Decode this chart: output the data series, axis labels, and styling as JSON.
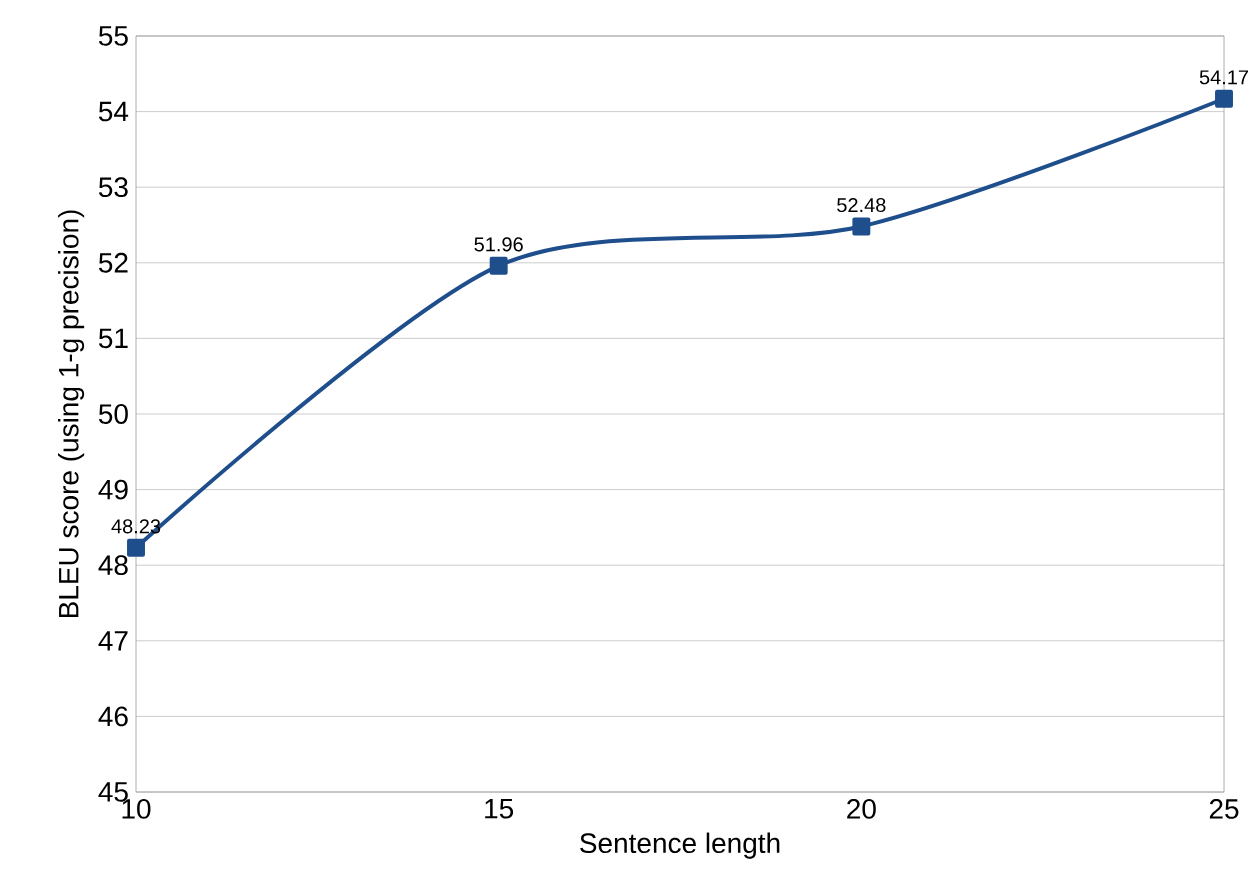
{
  "chart_data": {
    "type": "line",
    "xlabel": "Sentence length",
    "ylabel": "BLEU score (using 1-g precision)",
    "x": [
      10,
      15,
      20,
      25
    ],
    "series": [
      {
        "color": "#1f4e8c",
        "values": [
          48.23,
          51.96,
          52.48,
          54.17
        ]
      }
    ],
    "xlim": [
      10,
      25
    ],
    "xticks": [
      10,
      15,
      20,
      25
    ],
    "ylim": [
      45,
      55
    ],
    "yticks": [
      45,
      46,
      47,
      48,
      49,
      50,
      51,
      52,
      53,
      54,
      55
    ],
    "grid": "y",
    "marker": "square",
    "line_style": "solid",
    "data_labels": true
  }
}
